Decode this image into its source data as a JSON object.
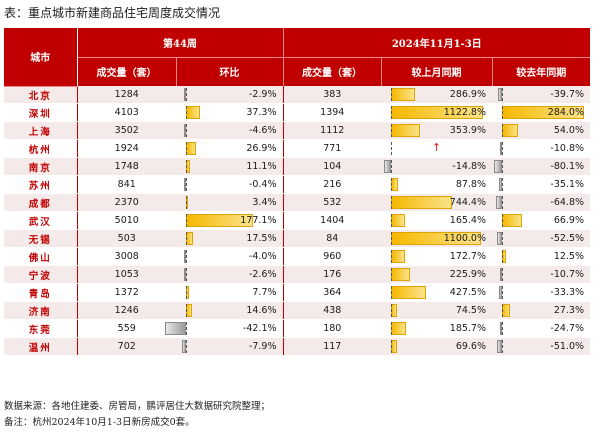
{
  "title": "表：重点城市新建商品住宅周度成交情况",
  "header": {
    "city": "城市",
    "week_group": "第44周",
    "period_group": "2024年11月1-3日",
    "cols": [
      "成交量（套）",
      "环比",
      "成交量（套）",
      "较上月同期",
      "较去年同期"
    ]
  },
  "rows": [
    {
      "city": "北京",
      "vol44": "1284",
      "hb": "-2.9%",
      "vol": "383",
      "mom": "286.9%",
      "yoy": "-39.7%"
    },
    {
      "city": "深圳",
      "vol44": "4103",
      "hb": "37.3%",
      "vol": "1394",
      "mom": "1122.8%",
      "yoy": "284.0%"
    },
    {
      "city": "上海",
      "vol44": "3502",
      "hb": "-4.6%",
      "vol": "1112",
      "mom": "353.9%",
      "yoy": "54.0%"
    },
    {
      "city": "杭州",
      "vol44": "1924",
      "hb": "26.9%",
      "vol": "771",
      "mom": "↑",
      "yoy": "-10.8%"
    },
    {
      "city": "南京",
      "vol44": "1748",
      "hb": "11.1%",
      "vol": "104",
      "mom": "-14.8%",
      "yoy": "-80.1%"
    },
    {
      "city": "苏州",
      "vol44": "841",
      "hb": "-0.4%",
      "vol": "216",
      "mom": "87.8%",
      "yoy": "-35.1%"
    },
    {
      "city": "成都",
      "vol44": "2370",
      "hb": "3.4%",
      "vol": "532",
      "mom": "744.4%",
      "yoy": "-64.8%"
    },
    {
      "city": "武汉",
      "vol44": "5010",
      "hb": "177.1%",
      "vol": "1404",
      "mom": "165.4%",
      "yoy": "66.9%"
    },
    {
      "city": "无锡",
      "vol44": "503",
      "hb": "17.5%",
      "vol": "84",
      "mom": "1100.0%",
      "yoy": "-52.5%"
    },
    {
      "city": "佛山",
      "vol44": "3008",
      "hb": "-4.0%",
      "vol": "960",
      "mom": "172.7%",
      "yoy": "12.5%"
    },
    {
      "city": "宁波",
      "vol44": "1053",
      "hb": "-2.6%",
      "vol": "176",
      "mom": "225.9%",
      "yoy": "-10.7%"
    },
    {
      "city": "青岛",
      "vol44": "1372",
      "hb": "7.7%",
      "vol": "364",
      "mom": "427.5%",
      "yoy": "-33.3%"
    },
    {
      "city": "济南",
      "vol44": "1246",
      "hb": "14.6%",
      "vol": "438",
      "mom": "74.5%",
      "yoy": "27.3%"
    },
    {
      "city": "东莞",
      "vol44": "559",
      "hb": "-42.1%",
      "vol": "180",
      "mom": "185.7%",
      "yoy": "-24.7%"
    },
    {
      "city": "温州",
      "vol44": "702",
      "hb": "-7.9%",
      "vol": "117",
      "mom": "69.6%",
      "yoy": "-51.0%"
    }
  ],
  "bars": {
    "hb": [
      -2.9,
      37.3,
      -4.6,
      26.9,
      11.1,
      -0.4,
      3.4,
      177.1,
      17.5,
      -4.0,
      -2.6,
      7.7,
      14.6,
      -42.1,
      -7.9
    ],
    "mom": [
      286.9,
      1122.8,
      353.9,
      null,
      -14.8,
      87.8,
      744.4,
      165.4,
      1100.0,
      172.7,
      225.9,
      427.5,
      74.5,
      185.7,
      69.6
    ],
    "yoy": [
      -39.7,
      284.0,
      54.0,
      -10.8,
      -80.1,
      -35.1,
      -64.8,
      66.9,
      -52.5,
      12.5,
      -10.7,
      -33.3,
      27.3,
      -24.7,
      -51.0
    ]
  },
  "footer": {
    "source": "数据来源：各地住建委、房管局，鹏评居住大数据研究院整理；",
    "note": "备注：杭州2024年10月1-3日新房成交0套。"
  }
}
